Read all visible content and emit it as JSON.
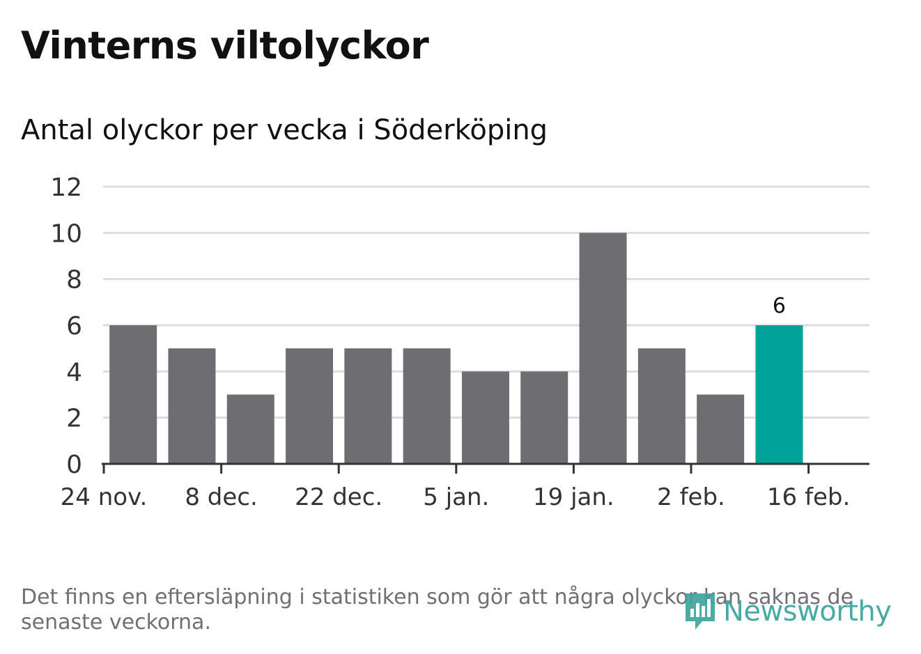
{
  "header": {
    "title": "Vinterns viltolyckor",
    "subtitle": "Antal olyckor per vecka i Söderköping"
  },
  "footnote": "Det finns en eftersläpning i statistiken som gör att några olyckor kan saknas de senaste veckorna.",
  "logo": {
    "text": "Newsworthy",
    "icon": "newsworthy-logo-icon"
  },
  "colors": {
    "bar": "#6e6d72",
    "highlight": "#00a39a",
    "grid": "#dddddd",
    "axis": "#333333",
    "text": "#111111",
    "tick_text": "#333333",
    "footnote": "#707074",
    "logo": "#3aa39d"
  },
  "chart_data": {
    "type": "bar",
    "title": "Vinterns viltolyckor",
    "subtitle": "Antal olyckor per vecka i Söderköping",
    "xlabel": "",
    "ylabel": "",
    "values": [
      6,
      5,
      3,
      5,
      5,
      5,
      4,
      4,
      10,
      5,
      3,
      6
    ],
    "highlight_index": 11,
    "data_labels": [
      {
        "index": 11,
        "text": "6"
      }
    ],
    "x_ticks": [
      {
        "position": 0,
        "label": "24 nov."
      },
      {
        "position": 2,
        "label": "8 dec."
      },
      {
        "position": 4,
        "label": "22 dec."
      },
      {
        "position": 6,
        "label": "5 jan."
      },
      {
        "position": 8,
        "label": "19 jan."
      },
      {
        "position": 10,
        "label": "2 feb."
      },
      {
        "position": 12,
        "label": "16 feb."
      }
    ],
    "y_ticks": [
      0,
      2,
      4,
      6,
      8,
      10,
      12
    ],
    "ylim": [
      0,
      12
    ],
    "grid": true,
    "legend": "none"
  }
}
